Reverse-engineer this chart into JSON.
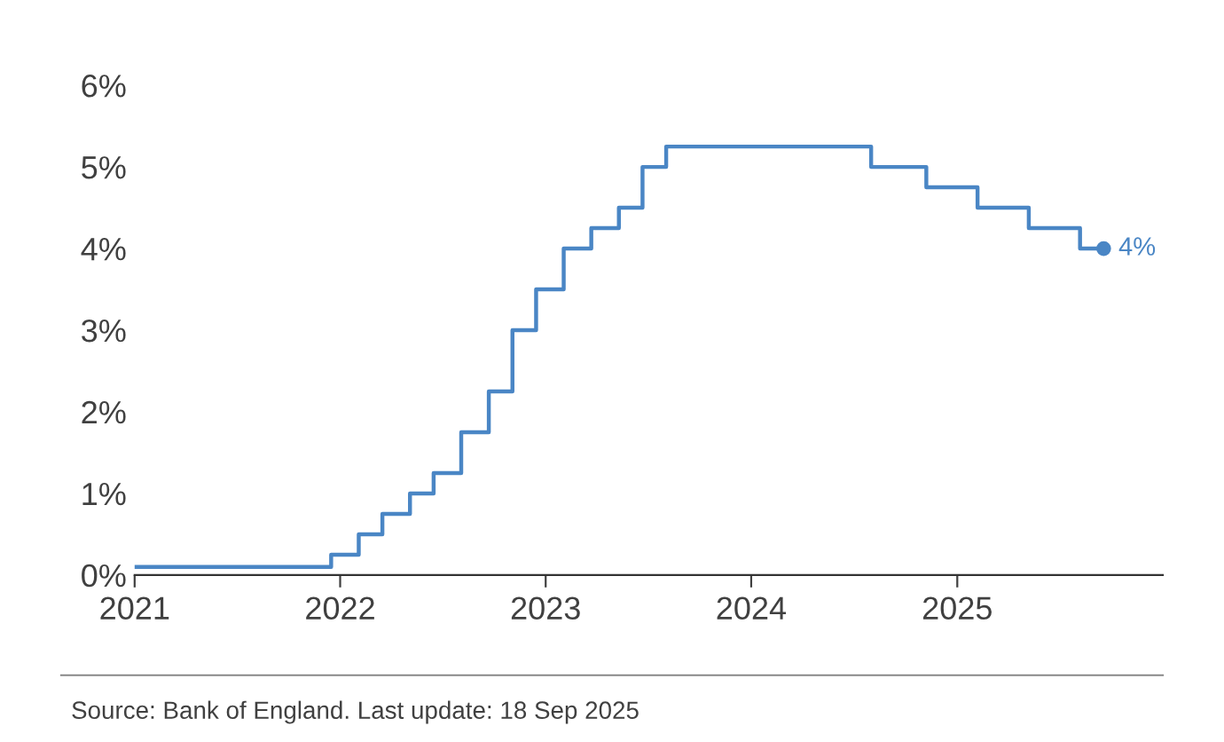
{
  "chart_data": {
    "type": "step",
    "x": [
      "2021-01-01",
      "2021-12-16",
      "2022-02-03",
      "2022-03-17",
      "2022-05-05",
      "2022-06-16",
      "2022-08-04",
      "2022-09-22",
      "2022-11-03",
      "2022-12-15",
      "2023-02-02",
      "2023-03-23",
      "2023-05-11",
      "2023-06-22",
      "2023-08-03",
      "2024-08-01",
      "2024-11-07",
      "2025-02-06",
      "2025-05-08",
      "2025-08-07",
      "2025-09-18"
    ],
    "series": [
      {
        "color": "#4a86c5",
        "values": [
          0.1,
          0.25,
          0.5,
          0.75,
          1.0,
          1.25,
          1.75,
          2.25,
          3.0,
          3.5,
          4.0,
          4.25,
          4.5,
          5.0,
          5.25,
          5.0,
          4.75,
          4.5,
          4.25,
          4.0,
          4.0
        ]
      }
    ],
    "xlim": [
      "2021-01-01",
      "2026-01-01"
    ],
    "xticks": [
      {
        "value": "2021-01-01",
        "label": "2021"
      },
      {
        "value": "2022-01-01",
        "label": "2022"
      },
      {
        "value": "2023-01-01",
        "label": "2023"
      },
      {
        "value": "2024-01-01",
        "label": "2024"
      },
      {
        "value": "2025-01-01",
        "label": "2025"
      }
    ],
    "ylim": [
      0,
      6
    ],
    "yticks": [
      {
        "value": 0,
        "label": "0%"
      },
      {
        "value": 1,
        "label": "1%"
      },
      {
        "value": 2,
        "label": "2%"
      },
      {
        "value": 3,
        "label": "3%"
      },
      {
        "value": 4,
        "label": "4%"
      },
      {
        "value": 5,
        "label": "5%"
      },
      {
        "value": 6,
        "label": "6%"
      }
    ],
    "grid": false,
    "annotations": [
      {
        "text": "4%",
        "x": "2025-09-18",
        "y": 4
      },
      "Source: Bank of England. Last update: 18 Sep 2025"
    ]
  }
}
